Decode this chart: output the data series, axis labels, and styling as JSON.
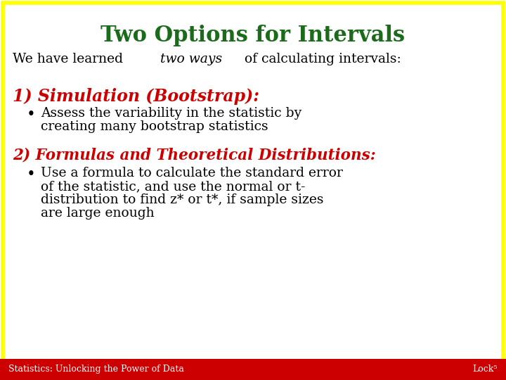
{
  "title": "Two Options for Intervals",
  "title_color": "#1a6b1a",
  "title_fontsize": 22,
  "background_color": "#ffffff",
  "border_color": "#ffff00",
  "border_linewidth": 4,
  "intro_prefix": "We have learned ",
  "intro_italic": "two ways",
  "intro_suffix": " of calculating intervals:",
  "intro_fontsize": 13.5,
  "intro_color": "#000000",
  "section1_heading": "1) Simulation (Bootstrap):",
  "section1_color": "#cc0000",
  "section1_fontsize": 17,
  "section1_bullet_line1": "Assess the variability in the statistic by",
  "section1_bullet_line2": "creating many bootstrap statistics",
  "section1_bullet_color": "#000000",
  "section1_bullet_fontsize": 13.5,
  "section2_heading": "2) Formulas and Theoretical Distributions:",
  "section2_color": "#cc0000",
  "section2_fontsize": 15.5,
  "section2_bullet_line1": "Use a formula to calculate the standard error",
  "section2_bullet_line2": "of the statistic, and use the normal or t-",
  "section2_bullet_line3": "distribution to find z* or t*, if sample sizes",
  "section2_bullet_line4": "are large enough",
  "section2_bullet_color": "#000000",
  "section2_bullet_fontsize": 13.5,
  "footer_text": "Statistics: Unlocking the Power of Data",
  "footer_right": "Lock⁵",
  "footer_bg": "#cc0000",
  "footer_fg": "#ffffff",
  "footer_fontsize": 9
}
